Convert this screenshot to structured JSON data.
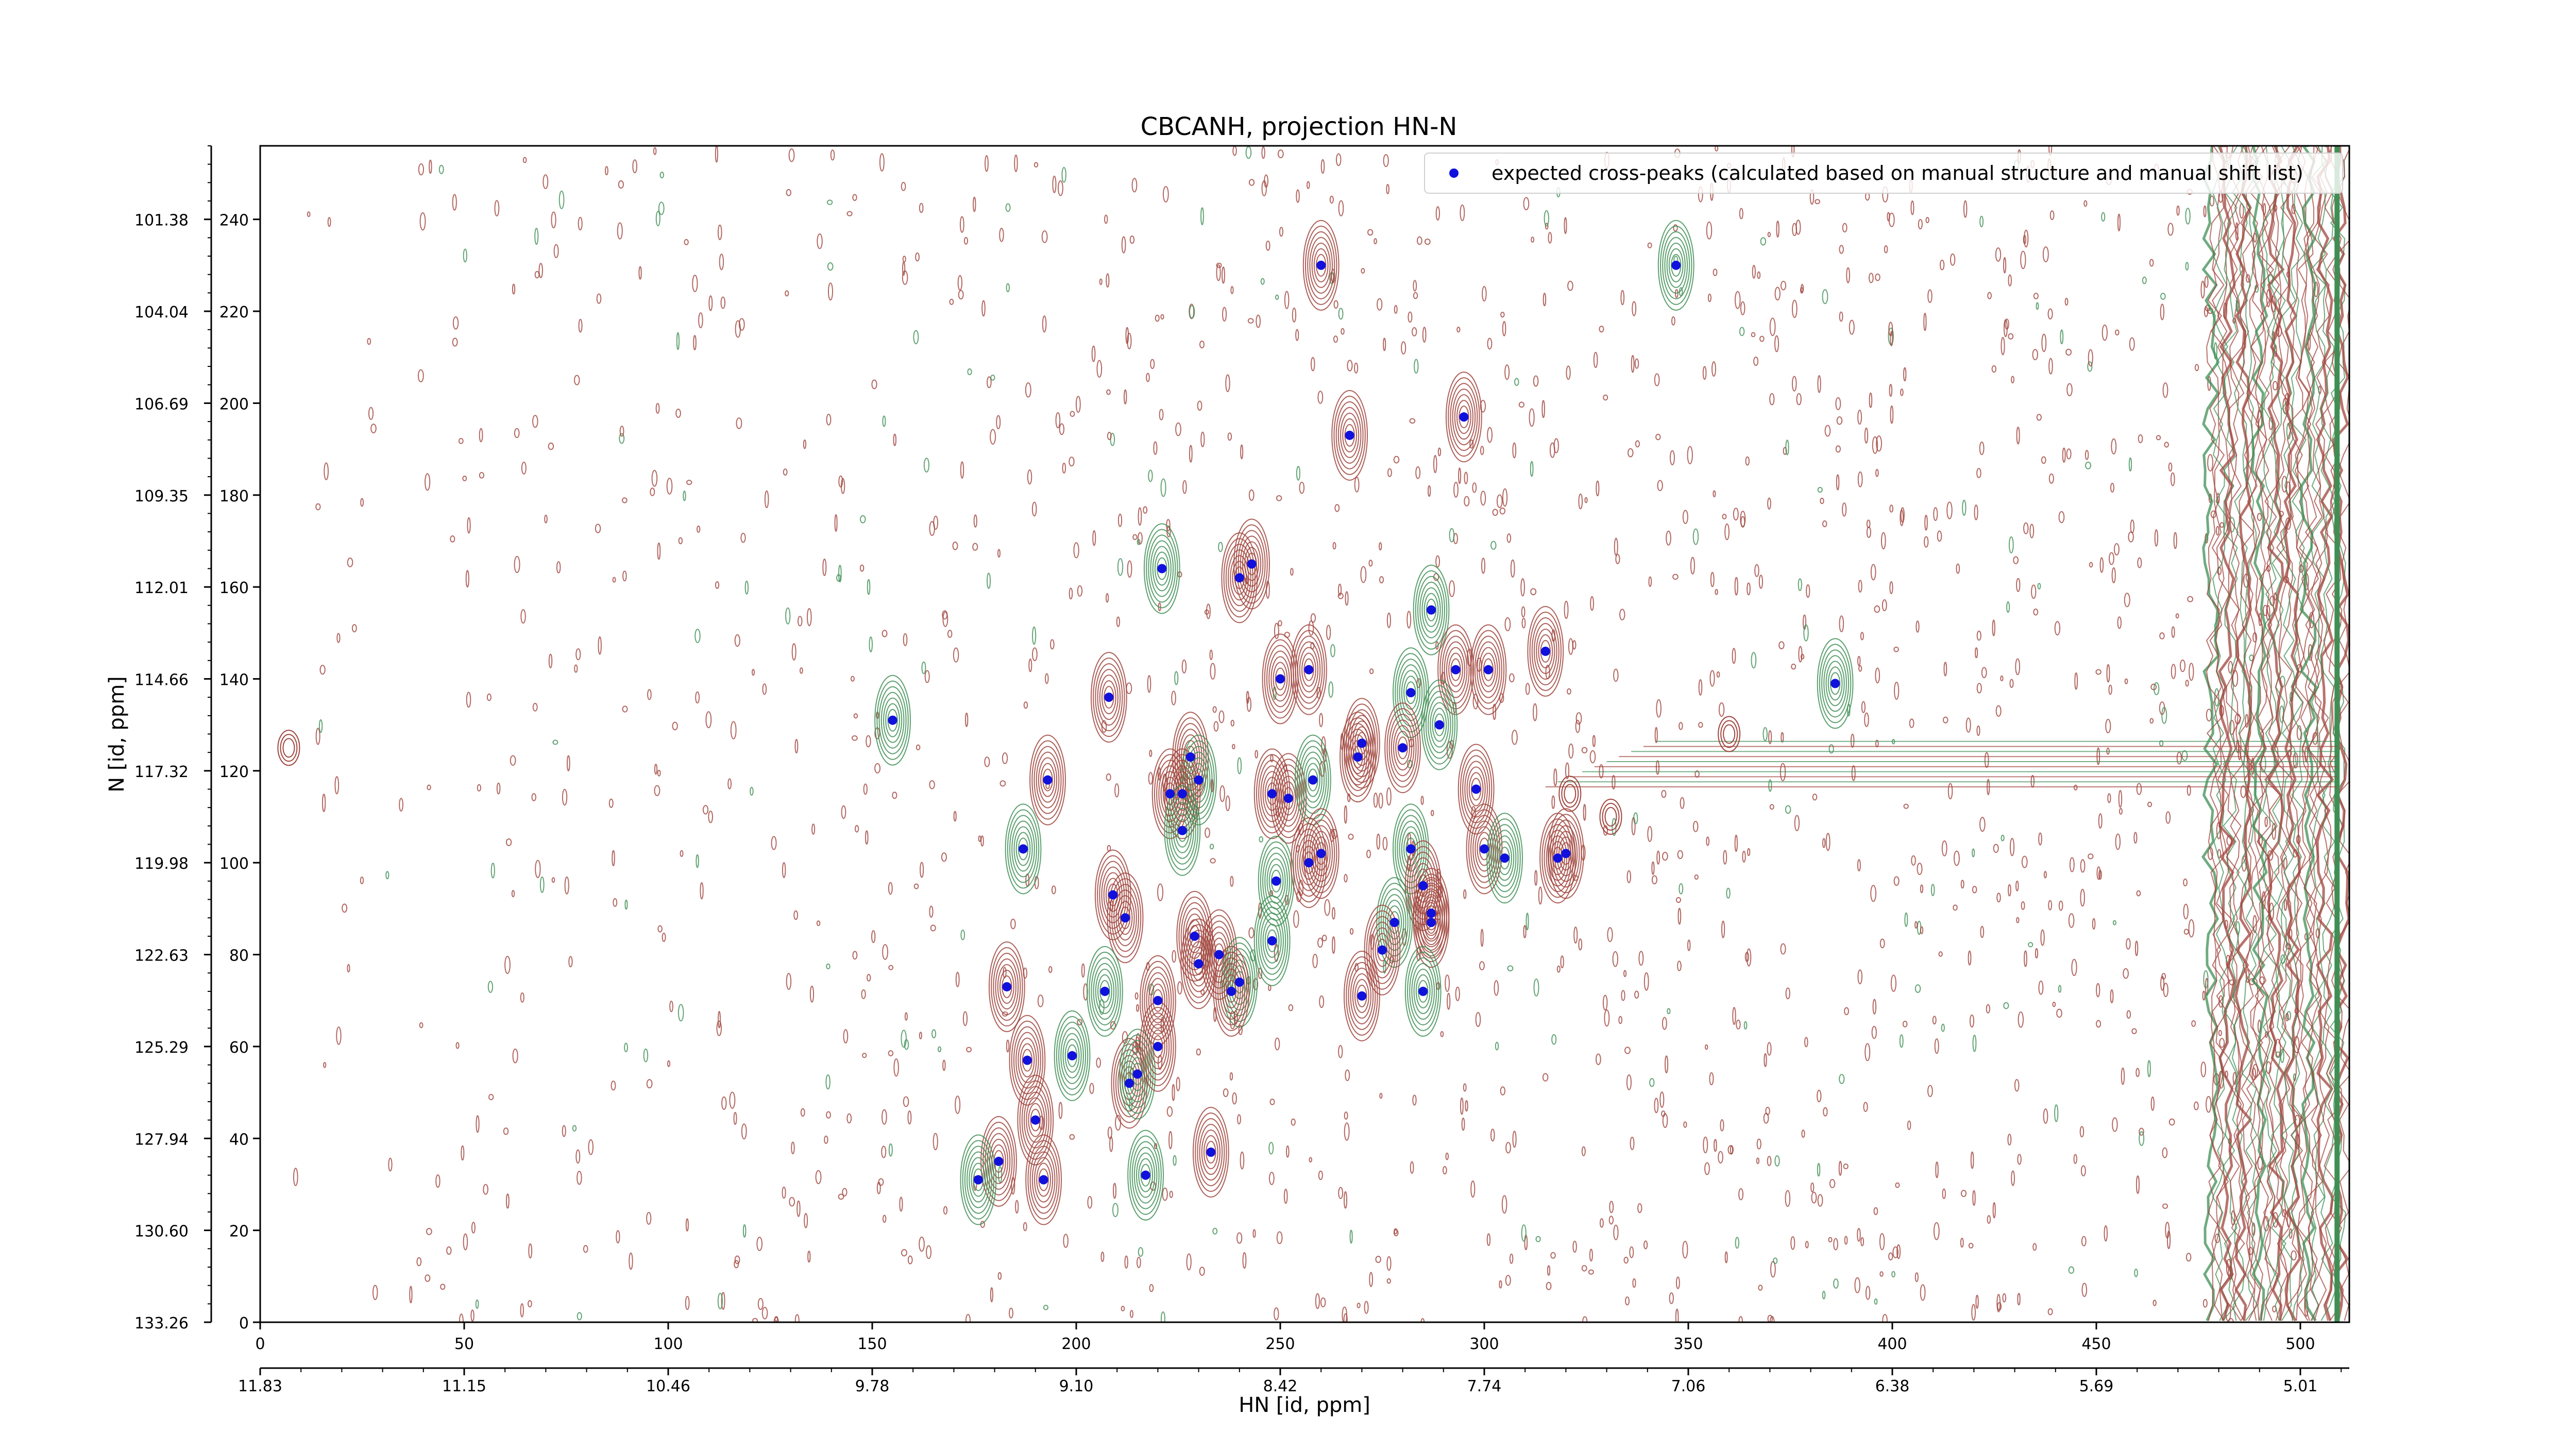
{
  "chart_data": {
    "type": "scatter",
    "title": "CBCANH, projection HN-N",
    "xlabel": "HN [id, ppm]",
    "ylabel": "N [id, ppm]",
    "xlim": [
      0,
      512
    ],
    "ylim": [
      0,
      256
    ],
    "grid": false,
    "legend_position": "top-right",
    "x_ticks": [
      0,
      50,
      100,
      150,
      200,
      250,
      300,
      350,
      400,
      450,
      500
    ],
    "x_tick_labels": [
      "0",
      "50",
      "100",
      "150",
      "200",
      "250",
      "300",
      "350",
      "400",
      "450",
      "500"
    ],
    "y_ticks": [
      0,
      20,
      40,
      60,
      80,
      100,
      120,
      140,
      160,
      180,
      200,
      220,
      240
    ],
    "y_tick_labels": [
      "0",
      "20",
      "40",
      "60",
      "80",
      "100",
      "120",
      "140",
      "160",
      "180",
      "200",
      "220",
      "240"
    ],
    "secondary_x_tick_labels": [
      "11.83",
      "11.15",
      "10.46",
      "9.78",
      "9.10",
      "8.42",
      "7.74",
      "7.06",
      "6.38",
      "5.69",
      "5.01"
    ],
    "secondary_y_tick_labels": [
      "133.26",
      "130.60",
      "127.94",
      "125.29",
      "122.63",
      "119.98",
      "117.32",
      "114.66",
      "112.01",
      "109.35",
      "106.69",
      "104.04",
      "101.38"
    ],
    "colors": {
      "peak_marker": "#1111dd",
      "contour_positive": "#a0443c",
      "contour_negative": "#3f8f55",
      "axis": "#000000"
    },
    "series": [
      {
        "name": "expected cross-peaks (calculated based on manual structure and manual shift list)",
        "points": [
          [
            260,
            230
          ],
          [
            347,
            230
          ],
          [
            267,
            193
          ],
          [
            295,
            197
          ],
          [
            221,
            164
          ],
          [
            240,
            162
          ],
          [
            243,
            165
          ],
          [
            287,
            155
          ],
          [
            315,
            146
          ],
          [
            208,
            136
          ],
          [
            155,
            131
          ],
          [
            250,
            140
          ],
          [
            257,
            142
          ],
          [
            282,
            137
          ],
          [
            293,
            142
          ],
          [
            301,
            142
          ],
          [
            386,
            139
          ],
          [
            270,
            126
          ],
          [
            280,
            125
          ],
          [
            289,
            130
          ],
          [
            193,
            118
          ],
          [
            228,
            123
          ],
          [
            230,
            118
          ],
          [
            223,
            115
          ],
          [
            226,
            115
          ],
          [
            226,
            107
          ],
          [
            248,
            115
          ],
          [
            252,
            114
          ],
          [
            258,
            118
          ],
          [
            298,
            116
          ],
          [
            269,
            123
          ],
          [
            187,
            103
          ],
          [
            209,
            93
          ],
          [
            212,
            88
          ],
          [
            249,
            96
          ],
          [
            257,
            100
          ],
          [
            260,
            102
          ],
          [
            282,
            103
          ],
          [
            285,
            95
          ],
          [
            300,
            103
          ],
          [
            305,
            101
          ],
          [
            318,
            101
          ],
          [
            320,
            102
          ],
          [
            278,
            87
          ],
          [
            287,
            89
          ],
          [
            287,
            87
          ],
          [
            285,
            72
          ],
          [
            275,
            81
          ],
          [
            270,
            71
          ],
          [
            248,
            83
          ],
          [
            230,
            78
          ],
          [
            235,
            80
          ],
          [
            240,
            74
          ],
          [
            238,
            72
          ],
          [
            229,
            84
          ],
          [
            207,
            72
          ],
          [
            183,
            73
          ],
          [
            220,
            70
          ],
          [
            199,
            58
          ],
          [
            188,
            57
          ],
          [
            213,
            52
          ],
          [
            215,
            54
          ],
          [
            220,
            60
          ],
          [
            181,
            35
          ],
          [
            176,
            31
          ],
          [
            190,
            44
          ],
          [
            192,
            31
          ],
          [
            217,
            32
          ],
          [
            233,
            37
          ]
        ]
      }
    ]
  }
}
